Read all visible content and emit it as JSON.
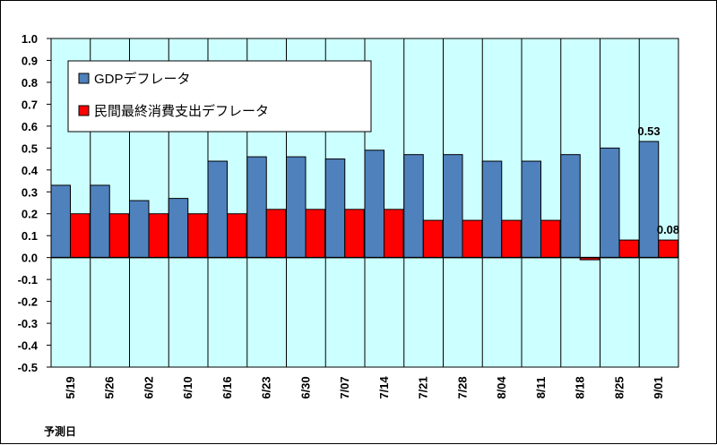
{
  "chart_data": {
    "type": "bar",
    "title": "",
    "xlabel": "予測日",
    "ylabel": "",
    "ylim": [
      -0.5,
      1.0
    ],
    "yticks": [
      "1.0",
      "0.9",
      "0.8",
      "0.7",
      "0.6",
      "0.5",
      "0.4",
      "0.3",
      "0.2",
      "0.1",
      "0.0",
      "-0.1",
      "-0.2",
      "-0.3",
      "-0.4",
      "-0.5"
    ],
    "categories": [
      "5/19",
      "5/26",
      "6/02",
      "6/10",
      "6/16",
      "6/23",
      "6/30",
      "7/07",
      "7/14",
      "7/21",
      "7/28",
      "8/04",
      "8/11",
      "8/18",
      "8/25",
      "9/01"
    ],
    "series": [
      {
        "name": "GDPデフレータ",
        "color": "#4f81bd",
        "values": [
          0.33,
          0.33,
          0.26,
          0.27,
          0.44,
          0.46,
          0.46,
          0.45,
          0.49,
          0.47,
          0.47,
          0.44,
          0.44,
          0.47,
          0.5,
          0.53
        ]
      },
      {
        "name": "民間最終消費支出デフレータ",
        "color": "#ff0000",
        "values": [
          0.2,
          0.2,
          0.2,
          0.2,
          0.2,
          0.22,
          0.22,
          0.22,
          0.22,
          0.17,
          0.17,
          0.17,
          0.17,
          -0.01,
          0.08,
          0.08
        ]
      }
    ],
    "data_labels": [
      {
        "series": 0,
        "index": 15,
        "text": "0.53"
      },
      {
        "series": 1,
        "index": 15,
        "text": "0.08"
      }
    ],
    "legend_position": "top-left",
    "grid": true,
    "plot_background": "#ccffff"
  }
}
